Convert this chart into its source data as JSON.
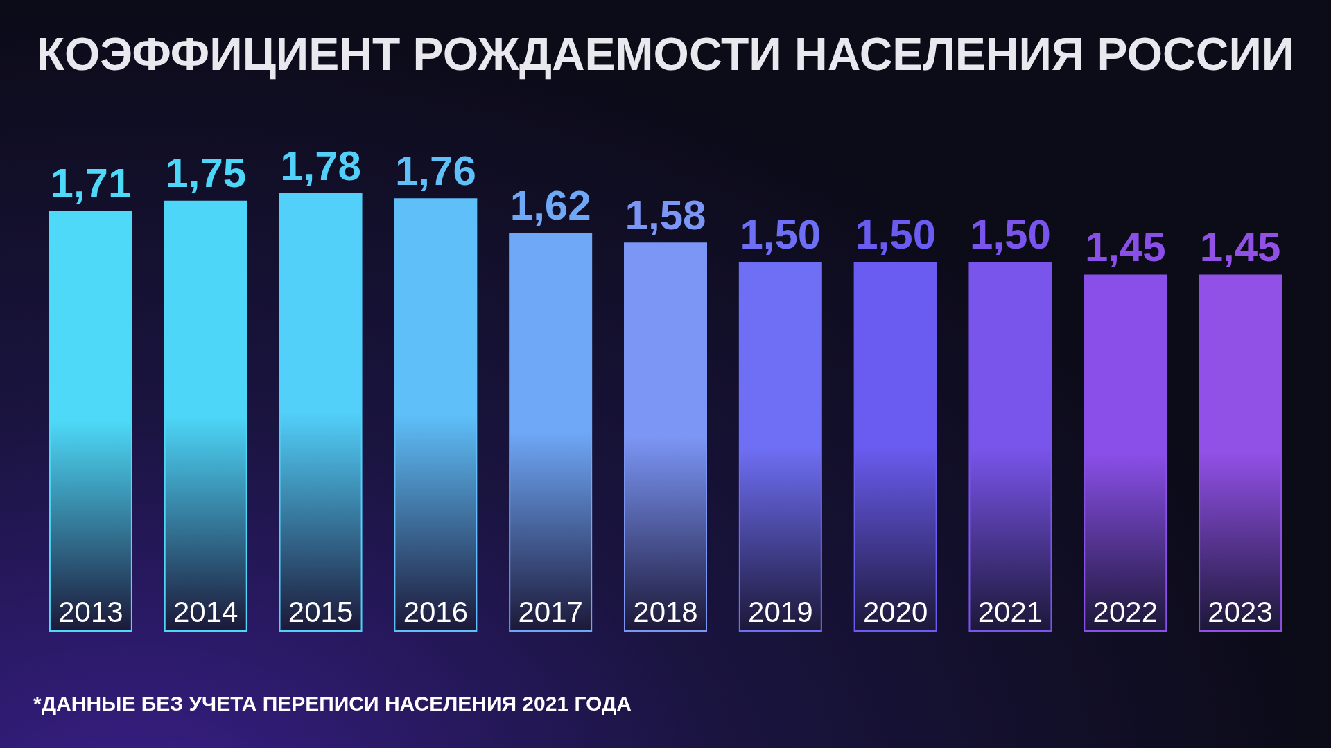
{
  "chart_data": {
    "type": "bar",
    "title": "КОЭФФИЦИЕНТ РОЖДАЕМОСТИ НАСЕЛЕНИЯ РОССИИ",
    "categories": [
      "2013",
      "2014",
      "2015",
      "2016",
      "2017",
      "2018",
      "2019",
      "2020",
      "2021",
      "2022",
      "2023"
    ],
    "values": [
      1.71,
      1.75,
      1.78,
      1.76,
      1.62,
      1.58,
      1.5,
      1.5,
      1.5,
      1.45,
      1.45
    ],
    "value_labels": [
      "1,71",
      "1,75",
      "1,78",
      "1,76",
      "1,62",
      "1,58",
      "1,50",
      "1,50",
      "1,50",
      "1,45",
      "1,45"
    ],
    "colors": [
      "#4dd9f7",
      "#4dd6f8",
      "#52d0fa",
      "#5fbff9",
      "#6fa8f7",
      "#7c96f5",
      "#6f6ff5",
      "#6a5cf0",
      "#7a55ec",
      "#8a4fe8",
      "#9150e6"
    ],
    "tick_labels": "x",
    "annotations": [
      "*ДАННЫЕ БЕЗ УЧЕТА ПЕРЕПИСИ НАСЕЛЕНИЯ 2021 ГОДА"
    ]
  }
}
